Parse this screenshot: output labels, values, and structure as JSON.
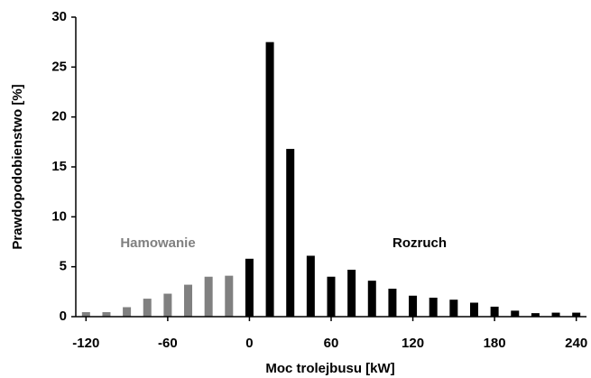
{
  "chart_data": {
    "type": "bar",
    "xlabel": "Moc trolejbusu [kW]",
    "ylabel": "Prawdopodobienstwo [%]",
    "series": [
      {
        "name": "Hamowanie",
        "color": "#808080",
        "x": [
          -120,
          -105,
          -90,
          -75,
          -60,
          -45,
          -30,
          -15
        ],
        "values": [
          0.45,
          0.45,
          0.95,
          1.8,
          2.3,
          3.2,
          4.0,
          4.1
        ]
      },
      {
        "name": "Rozruch",
        "color": "#000000",
        "x": [
          0,
          15,
          30,
          45,
          60,
          75,
          90,
          105,
          120,
          135,
          150,
          165,
          180,
          195,
          210,
          225,
          240
        ],
        "values": [
          5.8,
          27.5,
          16.8,
          6.1,
          4.0,
          4.7,
          3.6,
          2.8,
          2.1,
          1.9,
          1.7,
          1.4,
          1.0,
          0.6,
          0.35,
          0.4,
          0.4
        ]
      }
    ],
    "xlim": [
      -127.5,
      247.5
    ],
    "xticks": [
      -120,
      -60,
      0,
      60,
      120,
      180,
      240
    ],
    "ylim": [
      0,
      30
    ],
    "yticks": [
      0,
      5,
      10,
      15,
      20,
      25,
      30
    ],
    "grid": false
  }
}
